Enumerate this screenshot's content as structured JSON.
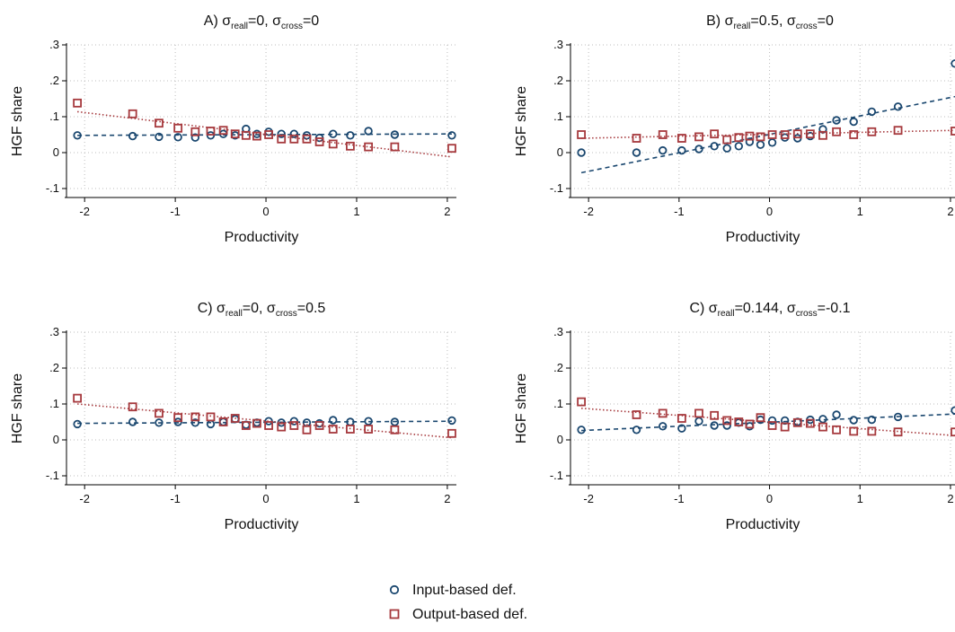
{
  "colors": {
    "input_series": "#1a476f",
    "output_series": "#a6393d",
    "gridline": "#bcbcbc",
    "axis": "#000000",
    "background": "#ffffff"
  },
  "legend": {
    "placement": "bottom-center",
    "entries": [
      {
        "series": "input",
        "marker": "circle",
        "label": "Input-based def."
      },
      {
        "series": "output",
        "marker": "square",
        "label": "Output-based def."
      }
    ]
  },
  "chart_data": [
    {
      "type": "scatter",
      "panel": "A",
      "title": {
        "prefix": "A) ",
        "s1": "σ",
        "sub1": "reall",
        "mid": "=0, ",
        "s2": "σ",
        "sub2": "cross",
        "end": "=0"
      },
      "xlabel": "Productivity",
      "ylabel": "HGF share",
      "xlim": [
        -2.2,
        2.1
      ],
      "ylim": [
        -0.1,
        0.3
      ],
      "xticks": [
        -2,
        -1,
        0,
        1,
        2
      ],
      "yticks": [
        -0.1,
        0,
        0.1,
        0.2,
        0.3
      ],
      "ytick_labels": [
        "-.1",
        "0",
        ".1",
        ".2",
        ".3"
      ],
      "grid": true,
      "series": [
        {
          "key": "input",
          "marker": "circle",
          "fit": "dashed",
          "x": [
            -2.08,
            -1.47,
            -1.18,
            -0.97,
            -0.78,
            -0.61,
            -0.47,
            -0.34,
            -0.22,
            -0.1,
            0.03,
            0.17,
            0.31,
            0.45,
            0.59,
            0.74,
            0.93,
            1.13,
            1.42,
            2.05
          ],
          "y": [
            0.048,
            0.046,
            0.044,
            0.043,
            0.042,
            0.048,
            0.052,
            0.048,
            0.066,
            0.052,
            0.058,
            0.052,
            0.052,
            0.048,
            0.041,
            0.052,
            0.048,
            0.06,
            0.05,
            0.048
          ],
          "fit_line": [
            [
              -2.08,
              0.048
            ],
            [
              2.05,
              0.052
            ]
          ]
        },
        {
          "key": "output",
          "marker": "square",
          "fit": "dotted",
          "x": [
            -2.08,
            -1.47,
            -1.18,
            -0.97,
            -0.78,
            -0.61,
            -0.47,
            -0.34,
            -0.22,
            -0.1,
            0.03,
            0.17,
            0.31,
            0.45,
            0.59,
            0.74,
            0.93,
            1.13,
            1.42,
            2.05
          ],
          "y": [
            0.138,
            0.108,
            0.082,
            0.068,
            0.058,
            0.06,
            0.062,
            0.052,
            0.048,
            0.046,
            0.05,
            0.038,
            0.038,
            0.038,
            0.03,
            0.024,
            0.018,
            0.016,
            0.016,
            0.012
          ],
          "fit_line": [
            [
              -2.08,
              0.114
            ],
            [
              2.05,
              -0.012
            ]
          ]
        }
      ]
    },
    {
      "type": "scatter",
      "panel": "B",
      "title": {
        "prefix": "B) ",
        "s1": "σ",
        "sub1": "reall",
        "mid": "=0.5, ",
        "s2": "σ",
        "sub2": "cross",
        "end": "=0"
      },
      "xlabel": "Productivity",
      "ylabel": "HGF share",
      "xlim": [
        -2.2,
        2.05
      ],
      "ylim": [
        -0.1,
        0.3
      ],
      "xticks": [
        -2,
        -1,
        0,
        1,
        2
      ],
      "yticks": [
        -0.1,
        0,
        0.1,
        0.2,
        0.3
      ],
      "ytick_labels": [
        "-.1",
        "0",
        ".1",
        ".2",
        ".3"
      ],
      "grid": true,
      "series": [
        {
          "key": "input",
          "marker": "circle",
          "fit": "dashed",
          "x": [
            -2.08,
            -1.47,
            -1.18,
            -0.97,
            -0.78,
            -0.61,
            -0.47,
            -0.34,
            -0.22,
            -0.1,
            0.03,
            0.17,
            0.31,
            0.45,
            0.59,
            0.74,
            0.93,
            1.13,
            1.42,
            2.05
          ],
          "y": [
            0.0,
            0.0,
            0.006,
            0.006,
            0.01,
            0.018,
            0.012,
            0.018,
            0.03,
            0.022,
            0.028,
            0.042,
            0.04,
            0.046,
            0.065,
            0.09,
            0.086,
            0.114,
            0.128,
            0.248
          ],
          "fit_line": [
            [
              -2.08,
              -0.056
            ],
            [
              2.05,
              0.156
            ]
          ]
        },
        {
          "key": "output",
          "marker": "square",
          "fit": "dotted",
          "x": [
            -2.08,
            -1.47,
            -1.18,
            -0.97,
            -0.78,
            -0.61,
            -0.47,
            -0.34,
            -0.22,
            -0.1,
            0.03,
            0.17,
            0.31,
            0.45,
            0.59,
            0.74,
            0.93,
            1.13,
            1.42,
            2.05
          ],
          "y": [
            0.05,
            0.04,
            0.05,
            0.04,
            0.044,
            0.052,
            0.036,
            0.042,
            0.046,
            0.044,
            0.05,
            0.05,
            0.052,
            0.052,
            0.048,
            0.058,
            0.05,
            0.058,
            0.062,
            0.06
          ],
          "fit_line": [
            [
              -2.08,
              0.04
            ],
            [
              2.05,
              0.062
            ]
          ]
        }
      ]
    },
    {
      "type": "scatter",
      "panel": "C",
      "title": {
        "prefix": "C) ",
        "s1": "σ",
        "sub1": "reall",
        "mid": "=0, ",
        "s2": "σ",
        "sub2": "cross",
        "end": "=0.5"
      },
      "xlabel": "Productivity",
      "ylabel": "HGF share",
      "xlim": [
        -2.2,
        2.1
      ],
      "ylim": [
        -0.1,
        0.3
      ],
      "xticks": [
        -2,
        -1,
        0,
        1,
        2
      ],
      "yticks": [
        -0.1,
        0,
        0.1,
        0.2,
        0.3
      ],
      "ytick_labels": [
        "-.1",
        "0",
        ".1",
        ".2",
        ".3"
      ],
      "grid": true,
      "series": [
        {
          "key": "input",
          "marker": "circle",
          "fit": "dashed",
          "x": [
            -2.08,
            -1.47,
            -1.18,
            -0.97,
            -0.78,
            -0.61,
            -0.47,
            -0.34,
            -0.22,
            -0.1,
            0.03,
            0.17,
            0.31,
            0.45,
            0.59,
            0.74,
            0.93,
            1.13,
            1.42,
            2.05
          ],
          "y": [
            0.044,
            0.05,
            0.048,
            0.05,
            0.048,
            0.044,
            0.05,
            0.058,
            0.042,
            0.048,
            0.052,
            0.048,
            0.052,
            0.048,
            0.046,
            0.055,
            0.05,
            0.052,
            0.05,
            0.054
          ],
          "fit_line": [
            [
              -2.08,
              0.046
            ],
            [
              2.05,
              0.052
            ]
          ]
        },
        {
          "key": "output",
          "marker": "square",
          "fit": "dotted",
          "x": [
            -2.08,
            -1.47,
            -1.18,
            -0.97,
            -0.78,
            -0.61,
            -0.47,
            -0.34,
            -0.22,
            -0.1,
            0.03,
            0.17,
            0.31,
            0.45,
            0.59,
            0.74,
            0.93,
            1.13,
            1.42,
            2.05
          ],
          "y": [
            0.116,
            0.092,
            0.074,
            0.062,
            0.064,
            0.064,
            0.05,
            0.06,
            0.04,
            0.046,
            0.04,
            0.036,
            0.04,
            0.028,
            0.04,
            0.03,
            0.03,
            0.03,
            0.028,
            0.018
          ],
          "fit_line": [
            [
              -2.08,
              0.1
            ],
            [
              2.05,
              0.006
            ]
          ]
        }
      ]
    },
    {
      "type": "scatter",
      "panel": "D",
      "title": {
        "prefix": "C) ",
        "s1": "σ",
        "sub1": "reall",
        "mid": "=0.144, ",
        "s2": "σ",
        "sub2": "cross",
        "end": "=-0.1"
      },
      "xlabel": "Productivity",
      "ylabel": "HGF share",
      "xlim": [
        -2.2,
        2.05
      ],
      "ylim": [
        -0.1,
        0.3
      ],
      "xticks": [
        -2,
        -1,
        0,
        1,
        2
      ],
      "yticks": [
        -0.1,
        0,
        0.1,
        0.2,
        0.3
      ],
      "ytick_labels": [
        "-.1",
        "0",
        ".1",
        ".2",
        ".3"
      ],
      "grid": true,
      "series": [
        {
          "key": "input",
          "marker": "circle",
          "fit": "dashed",
          "x": [
            -2.08,
            -1.47,
            -1.18,
            -0.97,
            -0.78,
            -0.61,
            -0.47,
            -0.34,
            -0.22,
            -0.1,
            0.03,
            0.17,
            0.31,
            0.45,
            0.59,
            0.74,
            0.93,
            1.13,
            1.42,
            2.05
          ],
          "y": [
            0.028,
            0.028,
            0.038,
            0.032,
            0.052,
            0.04,
            0.04,
            0.048,
            0.038,
            0.056,
            0.054,
            0.054,
            0.05,
            0.056,
            0.058,
            0.07,
            0.055,
            0.056,
            0.064,
            0.082
          ],
          "fit_line": [
            [
              -2.08,
              0.026
            ],
            [
              2.05,
              0.072
            ]
          ]
        },
        {
          "key": "output",
          "marker": "square",
          "fit": "dotted",
          "x": [
            -2.08,
            -1.47,
            -1.18,
            -0.97,
            -0.78,
            -0.61,
            -0.47,
            -0.34,
            -0.22,
            -0.1,
            0.03,
            0.17,
            0.31,
            0.45,
            0.59,
            0.74,
            0.93,
            1.13,
            1.42,
            2.05
          ],
          "y": [
            0.106,
            0.07,
            0.074,
            0.06,
            0.074,
            0.068,
            0.054,
            0.05,
            0.044,
            0.062,
            0.04,
            0.036,
            0.048,
            0.046,
            0.036,
            0.028,
            0.024,
            0.024,
            0.022,
            0.022
          ],
          "fit_line": [
            [
              -2.08,
              0.088
            ],
            [
              2.05,
              0.012
            ]
          ]
        }
      ]
    }
  ]
}
